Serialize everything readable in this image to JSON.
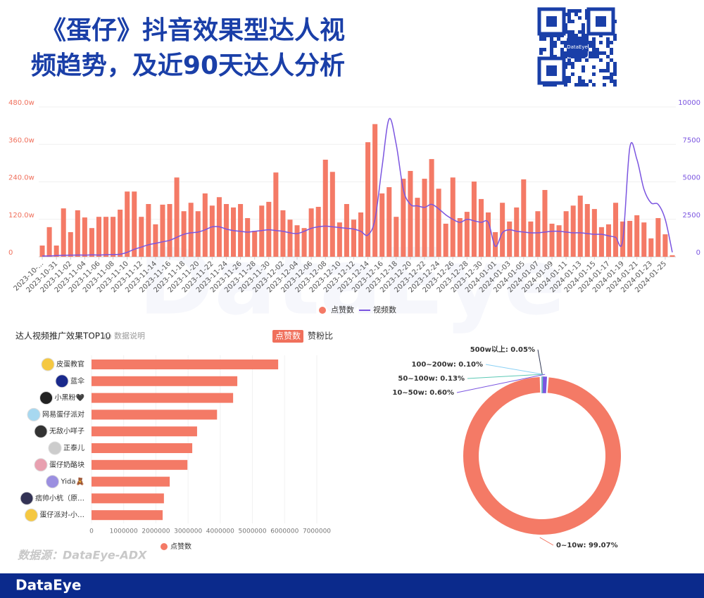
{
  "title_lines": [
    "《蛋仔》抖音效果型达人视",
    "频趋势，及近90天达人分析"
  ],
  "qr_label": "DataEye",
  "watermark": "DataEye",
  "source": "数据源：DataEye-ADX",
  "brand": "DataEye",
  "chart_data": [
    {
      "type": "combo",
      "categories": [
        "2023-10-...",
        null,
        "2023-10-31",
        null,
        "2023-11-02",
        null,
        "2023-11-04",
        null,
        "2023-11-06",
        null,
        "2023-11-08",
        null,
        "2023-11-10",
        null,
        "2023-11-12",
        null,
        "2023-11-14",
        null,
        "2023-11-16",
        null,
        "2023-11-18",
        null,
        "2023-11-20",
        null,
        "2023-11-22",
        null,
        "2023-11-24",
        null,
        "2023-11-26",
        null,
        "2023-11-28",
        null,
        "2023-11-30",
        null,
        "2023-12-02",
        null,
        "2023-12-04",
        null,
        "2023-12-06",
        null,
        "2023-12-08",
        null,
        "2023-12-10",
        null,
        "2023-12-12",
        null,
        "2023-12-14",
        null,
        "2023-12-16",
        null,
        "2023-12-18",
        null,
        "2023-12-20",
        null,
        "2023-12-22",
        null,
        "2023-12-24",
        null,
        "2023-12-26",
        null,
        "2023-12-28",
        null,
        "2023-12-30",
        null,
        "2024-01-01",
        null,
        "2024-01-03",
        null,
        "2024-01-05",
        null,
        "2024-01-07",
        null,
        "2024-01-09",
        null,
        "2024-01-11",
        null,
        "2024-01-13",
        null,
        "2024-01-15",
        null,
        "2024-01-17",
        null,
        "2024-01-19",
        null,
        "2024-01-21",
        null,
        "2024-01-23",
        null,
        "2024-01-25",
        null
      ],
      "series": [
        {
          "name": "点赞数",
          "type": "bar",
          "color": "#f47a66",
          "values": [
            36,
            95,
            36,
            155,
            79,
            149,
            126,
            92,
            128,
            128,
            128,
            151,
            209,
            209,
            128,
            169,
            104,
            167,
            169,
            254,
            146,
            173,
            146,
            203,
            164,
            191,
            169,
            158,
            169,
            124,
            83,
            164,
            176,
            270,
            149,
            119,
            101,
            92,
            155,
            160,
            311,
            272,
            110,
            169,
            119,
            142,
            367,
            425,
            203,
            223,
            128,
            250,
            275,
            189,
            250,
            313,
            218,
            106,
            254,
            124,
            144,
            241,
            185,
            142,
            79,
            173,
            113,
            158,
            248,
            113,
            146,
            214,
            106,
            101,
            146,
            164,
            196,
            169,
            153,
            95,
            104,
            173,
            113,
            115,
            133,
            110,
            59,
            124,
            72,
            5
          ]
        },
        {
          "name": "视频数",
          "type": "line",
          "axis": "y2",
          "color": "#7b55e0",
          "values": [
            50,
            60,
            80,
            100,
            110,
            120,
            110,
            130,
            120,
            140,
            150,
            170,
            300,
            500,
            650,
            800,
            900,
            1000,
            1100,
            1300,
            1500,
            1600,
            1650,
            1800,
            2000,
            2000,
            1850,
            1750,
            1700,
            1650,
            1700,
            1750,
            1800,
            1750,
            1700,
            1600,
            1550,
            1700,
            1900,
            2000,
            2050,
            2000,
            1950,
            1900,
            1850,
            1700,
            1450,
            2500,
            6000,
            9200,
            7500,
            4500,
            3500,
            3400,
            3300,
            3500,
            3200,
            2800,
            2500,
            2300,
            2500,
            2400,
            2300,
            2300,
            700,
            1600,
            1800,
            1700,
            1650,
            1600,
            1600,
            1650,
            1700,
            1700,
            1650,
            1600,
            1600,
            1550,
            1500,
            1500,
            1400,
            1300,
            1100,
            7300,
            6500,
            4500,
            3600,
            3500,
            2500,
            300
          ]
        }
      ],
      "ylim": [
        0,
        480
      ],
      "yticks": [
        0,
        {
          "value": 120,
          "label": "120.0w"
        },
        {
          "value": 240,
          "label": "240.0w"
        },
        {
          "value": 360,
          "label": "360.0w"
        },
        {
          "value": 480,
          "label": "480.0w"
        }
      ],
      "y2lim": [
        0,
        10000
      ],
      "y2ticks": [
        0,
        2500,
        5000,
        7500,
        10000
      ]
    },
    {
      "type": "hbar",
      "title": "达人视频推广效果TOP10",
      "note": "数据说明",
      "tabs": [
        "点赞数",
        "赞粉比"
      ],
      "categories": [
        "皮蛋教官",
        "蓝伞",
        "小黑粉🖤",
        "网易蛋仔派对",
        "无敌小咩子",
        "正泰儿",
        "蛋仔奶酪块",
        "Yida🧸",
        "痞帅小杭（原…",
        "蛋仔派对-小…"
      ],
      "series": [
        {
          "name": "点赞数",
          "color": "#f47a66",
          "values": [
            5800000,
            4530000,
            4400000,
            3900000,
            3280000,
            3130000,
            2980000,
            2430000,
            2250000,
            2210000
          ]
        }
      ],
      "xlim": [
        0,
        7000000
      ],
      "xticks": [
        0,
        1000000,
        2000000,
        3000000,
        4000000,
        5000000,
        6000000,
        7000000
      ]
    },
    {
      "type": "donut",
      "values": [
        0.05,
        0.1,
        0.13,
        0.6,
        99.07
      ],
      "value_labels": [
        "500w以上: 0.05%",
        "100~200w: 0.10%",
        "50~100w: 0.13%",
        "10~50w: 0.60%",
        "0~10w: 99.07%"
      ],
      "colors": [
        "#333a56",
        "#8ad1f5",
        "#5cc9b5",
        "#7b55e0",
        "#f47a66"
      ]
    }
  ]
}
